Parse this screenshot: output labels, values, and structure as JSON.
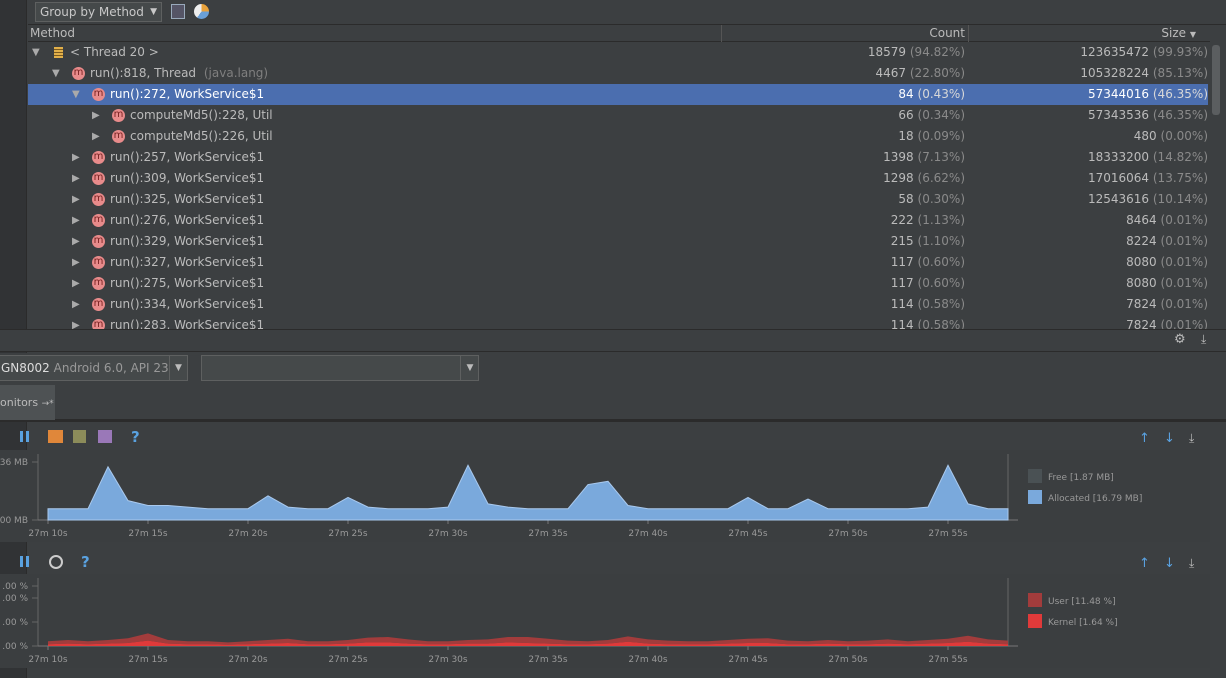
{
  "toolbar": {
    "group_by": "Group by Method"
  },
  "table": {
    "columns": [
      "Method",
      "Count",
      "Size"
    ],
    "rows": [
      {
        "method": "< Thread 20 >",
        "count": "18579",
        "count_pct": "(94.82%)",
        "size": "123635472",
        "size_pct": "(99.93%)",
        "children": [
          {
            "method": "run():818, Thread",
            "package": "(java.lang)",
            "count": "4467",
            "count_pct": "(22.80%)",
            "size": "105328224",
            "size_pct": "(85.13%)",
            "children": [
              {
                "method": "run():272, WorkService$1",
                "count": "84",
                "count_pct": "(0.43%)",
                "size": "57344016",
                "size_pct": "(46.35%)",
                "selected": true,
                "children": [
                  {
                    "method": "computeMd5():228, Util",
                    "count": "66",
                    "count_pct": "(0.34%)",
                    "size": "57343536",
                    "size_pct": "(46.35%)"
                  },
                  {
                    "method": "computeMd5():226, Util",
                    "count": "18",
                    "count_pct": "(0.09%)",
                    "size": "480",
                    "size_pct": "(0.00%)"
                  }
                ]
              },
              {
                "method": "run():257, WorkService$1",
                "count": "1398",
                "count_pct": "(7.13%)",
                "size": "18333200",
                "size_pct": "(14.82%)"
              },
              {
                "method": "run():309, WorkService$1",
                "count": "1298",
                "count_pct": "(6.62%)",
                "size": "17016064",
                "size_pct": "(13.75%)"
              },
              {
                "method": "run():325, WorkService$1",
                "count": "58",
                "count_pct": "(0.30%)",
                "size": "12543616",
                "size_pct": "(10.14%)"
              },
              {
                "method": "run():276, WorkService$1",
                "count": "222",
                "count_pct": "(1.13%)",
                "size": "8464",
                "size_pct": "(0.01%)"
              },
              {
                "method": "run():329, WorkService$1",
                "count": "215",
                "count_pct": "(1.10%)",
                "size": "8224",
                "size_pct": "(0.01%)"
              },
              {
                "method": "run():327, WorkService$1",
                "count": "117",
                "count_pct": "(0.60%)",
                "size": "8080",
                "size_pct": "(0.01%)"
              },
              {
                "method": "run():275, WorkService$1",
                "count": "117",
                "count_pct": "(0.60%)",
                "size": "8080",
                "size_pct": "(0.01%)"
              },
              {
                "method": "run():334, WorkService$1",
                "count": "114",
                "count_pct": "(0.58%)",
                "size": "7824",
                "size_pct": "(0.01%)"
              },
              {
                "method": "run():283, WorkService$1",
                "count": "114",
                "count_pct": "(0.58%)",
                "size": "7824",
                "size_pct": "(0.01%)"
              }
            ]
          }
        ]
      }
    ]
  },
  "device_bar": {
    "device": "GN8002",
    "device_info": "Android 6.0, API 23"
  },
  "tab": {
    "title": "onitors"
  },
  "help": "?",
  "chart_data": [
    {
      "type": "area",
      "x": [
        570,
        571,
        572,
        573,
        574,
        575,
        576,
        577,
        578,
        579,
        580,
        581,
        582,
        583,
        584,
        585,
        586,
        587,
        588,
        589,
        590,
        591,
        592,
        593,
        594,
        595,
        596,
        597,
        598,
        599,
        600,
        601,
        602,
        603,
        604,
        605,
        606,
        607,
        608,
        609,
        610,
        611,
        612,
        613,
        614,
        615,
        616,
        617,
        618
      ],
      "xlim": [
        569.5,
        618
      ],
      "xticks": [
        {
          "value": 570,
          "label": "27m 10s"
        },
        {
          "value": 575,
          "label": "27m 15s"
        },
        {
          "value": 580,
          "label": "27m 20s"
        },
        {
          "value": 585,
          "label": "27m 25s"
        },
        {
          "value": 590,
          "label": "27m 30s"
        },
        {
          "value": 595,
          "label": "27m 35s"
        },
        {
          "value": 600,
          "label": "27m 40s"
        },
        {
          "value": 605,
          "label": "27m 45s"
        },
        {
          "value": 610,
          "label": "27m 50s"
        },
        {
          "value": 615,
          "label": "27m 55s"
        }
      ],
      "ylim": [
        0,
        36
      ],
      "yticks": [
        {
          "value": 36,
          "label": "36 MB"
        },
        {
          "value": 0,
          "label": "00 MB"
        }
      ],
      "series": [
        {
          "name": "Free [1.87 MB]",
          "color": "#4a5154"
        },
        {
          "name": "Allocated [16.79 MB]",
          "color": "#7aa9dc",
          "values": [
            7,
            7,
            7,
            33,
            12,
            9,
            9,
            8,
            7,
            7,
            7,
            15,
            8,
            7,
            7,
            14,
            8,
            7,
            7,
            7,
            8,
            34,
            10,
            8,
            7,
            7,
            7,
            22,
            24,
            9,
            7,
            7,
            7,
            7,
            7,
            14,
            7,
            7,
            13,
            7,
            7,
            7,
            7,
            7,
            8,
            34,
            10,
            7,
            7
          ]
        }
      ]
    },
    {
      "type": "stacked-area",
      "x": [
        570,
        571,
        572,
        573,
        574,
        575,
        576,
        577,
        578,
        579,
        580,
        581,
        582,
        583,
        584,
        585,
        586,
        587,
        588,
        589,
        590,
        591,
        592,
        593,
        594,
        595,
        596,
        597,
        598,
        599,
        600,
        601,
        602,
        603,
        604,
        605,
        606,
        607,
        608,
        609,
        610,
        611,
        612,
        613,
        614,
        615,
        616,
        617,
        618
      ],
      "xlim": [
        569.5,
        618
      ],
      "xticks": [
        {
          "value": 570,
          "label": "27m 10s"
        },
        {
          "value": 575,
          "label": "27m 15s"
        },
        {
          "value": 580,
          "label": "27m 20s"
        },
        {
          "value": 585,
          "label": "27m 25s"
        },
        {
          "value": 590,
          "label": "27m 30s"
        },
        {
          "value": 595,
          "label": "27m 35s"
        },
        {
          "value": 600,
          "label": "27m 40s"
        },
        {
          "value": 605,
          "label": "27m 45s"
        },
        {
          "value": 610,
          "label": "27m 50s"
        },
        {
          "value": 615,
          "label": "27m 55s"
        }
      ],
      "ylim": [
        0,
        100
      ],
      "yticks": [
        {
          "value": 100,
          "label": ".00 %"
        },
        {
          "value": 80,
          "label": ".00 %"
        },
        {
          "value": 40,
          "label": ".00 %"
        },
        {
          "value": 0,
          "label": ".00 %"
        }
      ],
      "series": [
        {
          "name": "User [11.48 %]",
          "color": "#a23c3c",
          "values": [
            5,
            6,
            5,
            6,
            8,
            12,
            6,
            5,
            5,
            4,
            5,
            6,
            7,
            5,
            5,
            6,
            8,
            9,
            7,
            5,
            5,
            6,
            7,
            9,
            10,
            8,
            6,
            5,
            6,
            9,
            7,
            6,
            5,
            5,
            6,
            7,
            8,
            6,
            5,
            6,
            5,
            6,
            7,
            5,
            6,
            7,
            10,
            7,
            6
          ]
        },
        {
          "name": "Kernel [1.64 %]",
          "color": "#e03a3a",
          "values": [
            3,
            4,
            3,
            4,
            5,
            9,
            4,
            3,
            3,
            2,
            3,
            4,
            5,
            3,
            3,
            4,
            6,
            6,
            4,
            3,
            3,
            4,
            4,
            6,
            5,
            4,
            3,
            3,
            4,
            7,
            4,
            3,
            3,
            3,
            4,
            5,
            5,
            3,
            3,
            4,
            3,
            3,
            4,
            3,
            4,
            5,
            7,
            4,
            3
          ]
        }
      ]
    }
  ]
}
